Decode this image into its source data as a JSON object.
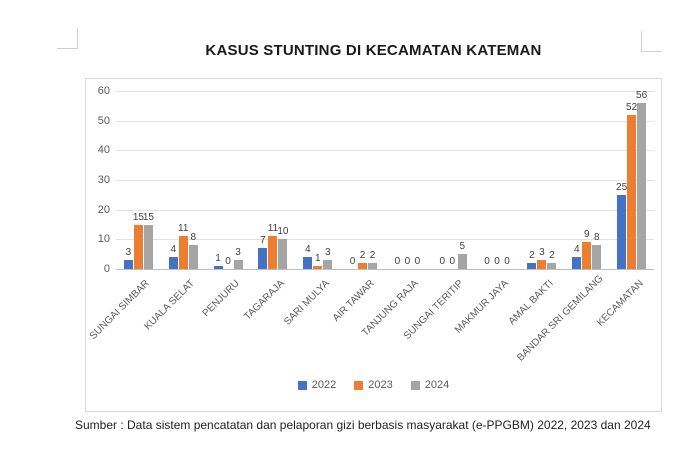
{
  "page": {
    "title": "KASUS STUNTING DI KECAMATAN KATEMAN",
    "caption": "Sumber : Data sistem pencatatan dan pelaporan gizi berbasis masyarakat (e-PPGBM) 2022, 2023 dan 2024"
  },
  "chart_data": {
    "type": "bar",
    "title": "KASUS STUNTING DI KECAMATAN KATEMAN",
    "categories": [
      "SUNGAI SIMBAR",
      "KUALA SELAT",
      "PENJURU",
      "TAGARAJA",
      "SARI MULYA",
      "AIR TAWAR",
      "TANJUNG RAJA",
      "SUNGAI TERITIP",
      "MAKMUR JAYA",
      "AMAL BAKTI",
      "BANDAR SRI GEMILANG",
      "KECAMATAN"
    ],
    "series": [
      {
        "name": "2022",
        "color": "#4472C4",
        "values": [
          3,
          4,
          1,
          7,
          4,
          0,
          0,
          0,
          0,
          2,
          4,
          25
        ]
      },
      {
        "name": "2023",
        "color": "#ED7D31",
        "values": [
          15,
          11,
          0,
          11,
          1,
          2,
          0,
          0,
          0,
          3,
          9,
          52
        ]
      },
      {
        "name": "2024",
        "color": "#A5A5A5",
        "values": [
          15,
          8,
          3,
          10,
          3,
          2,
          0,
          5,
          0,
          2,
          8,
          56
        ]
      }
    ],
    "ylabel": "",
    "xlabel": "",
    "ylim": [
      0,
      60
    ],
    "yticks": [
      0,
      10,
      20,
      30,
      40,
      50,
      60
    ],
    "grid": true,
    "data_labels": true,
    "legend_position": "bottom"
  }
}
